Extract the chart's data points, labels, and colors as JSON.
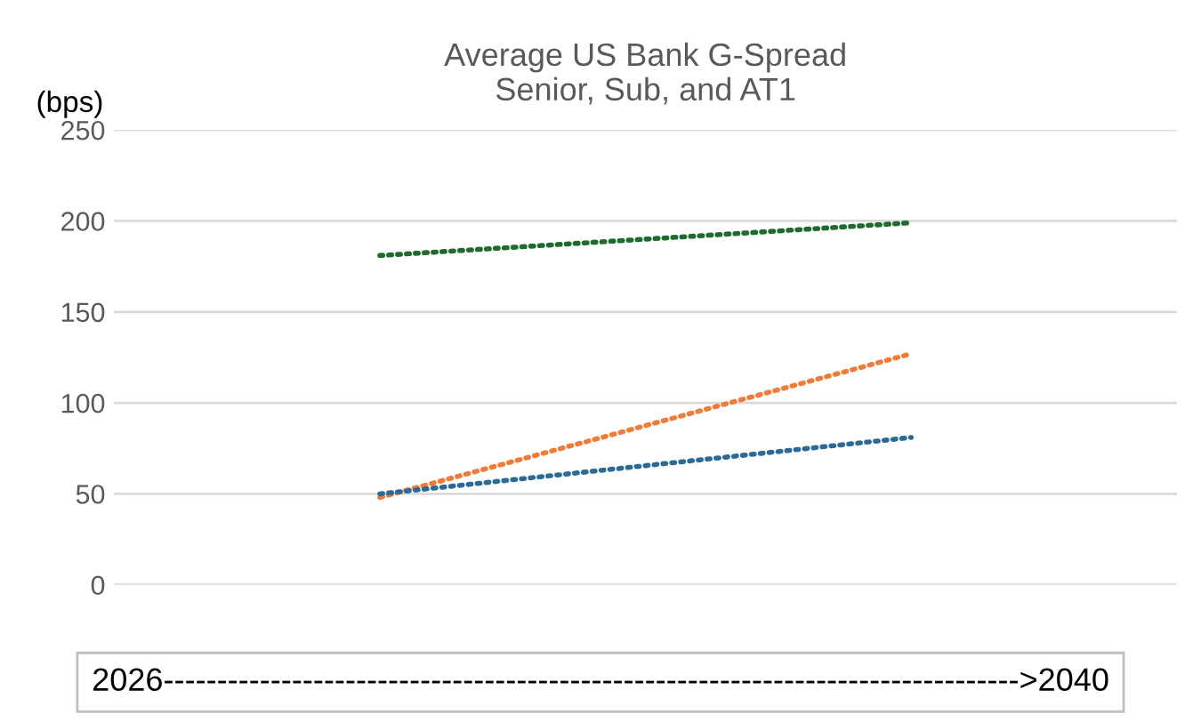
{
  "chart_data": {
    "type": "line",
    "title": "Average US Bank G-Spread\nSenior, Sub, and AT1",
    "ylabel": "(bps)",
    "categories": [
      null,
      null
    ],
    "series": [
      {
        "color": "#1f6b2e",
        "values": [
          181,
          199
        ]
      },
      {
        "color": "#f07c3a",
        "values": [
          48,
          127
        ]
      },
      {
        "color": "#2a6a94",
        "values": [
          50,
          81
        ]
      }
    ],
    "ylim": [
      0,
      250
    ],
    "yticks": [
      0,
      50,
      100,
      150,
      200,
      250
    ],
    "grid": "y",
    "legend": false,
    "line_style": "dotted",
    "marker": "none",
    "tick_labels": "y",
    "annotations": [
      "2026-------------------------------------------------------------------------------->2040"
    ]
  }
}
